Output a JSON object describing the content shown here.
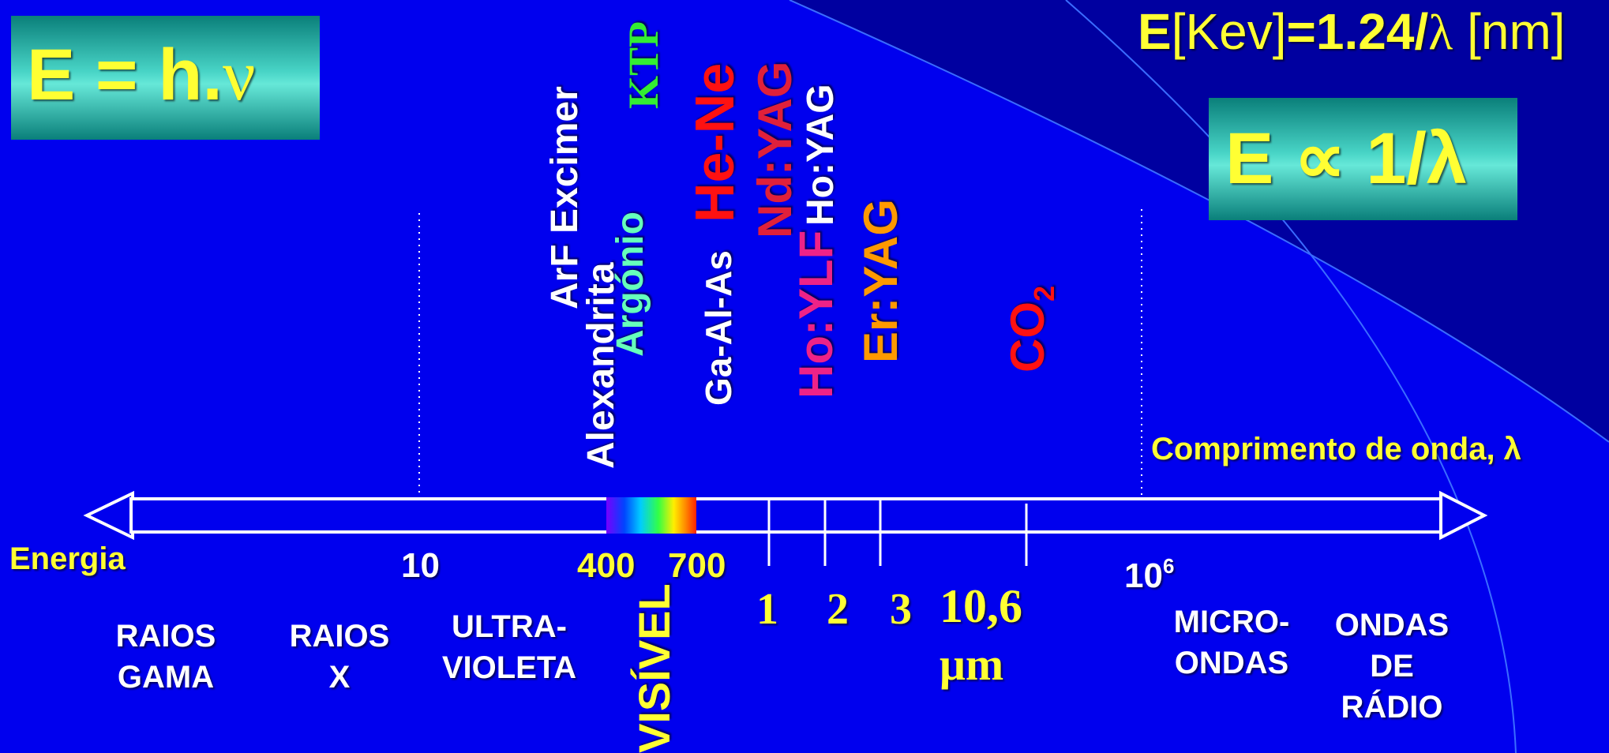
{
  "colors": {
    "background": "#0000ee",
    "accent_yellow": "#ffff33",
    "box_teal": "#48d4c6"
  },
  "formulas": {
    "planck_E": "E = h.",
    "planck_nu": "ν",
    "energy_E": "E",
    "energy_unit": "[Kev]",
    "energy_eq": "=1.24/",
    "energy_lambda": "λ",
    "energy_nm": " [nm]",
    "proportional": "E ∝ 1/λ"
  },
  "axis": {
    "wavelength_label": "Comprimento de onda, λ",
    "energy_label": "Energia",
    "tick_10": "10",
    "tick_400": "400",
    "tick_700": "700",
    "tick_1e6_base": "10",
    "tick_1e6_exp": "6",
    "um_1": "1",
    "um_2": "2",
    "um_3": "3",
    "um_106": "10,6",
    "um_unit": "μm"
  },
  "bands": {
    "gamma": [
      "RAIOS",
      "GAMA"
    ],
    "xray": [
      "RAIOS",
      "X"
    ],
    "uv": [
      "ULTRA-",
      "VIOLETA"
    ],
    "visible": "VISÍVEL",
    "micro": [
      "MICRO-",
      "ONDAS"
    ],
    "radio": [
      "ONDAS",
      "DE",
      "RÁDIO"
    ]
  },
  "lasers": {
    "arf": "ArF Excimer",
    "alexandrita": "Alexandrita",
    "argonio": "Argónio",
    "ktp": "KTP",
    "gaalas": "Ga-Al-As",
    "hene": "He-Ne",
    "ndyag": "Nd:YAG",
    "hoylf": "Ho:YLF",
    "hoyag": "Ho:YAG",
    "eryag": "Er:YAG",
    "co2": "CO",
    "co2_sub": "2"
  }
}
